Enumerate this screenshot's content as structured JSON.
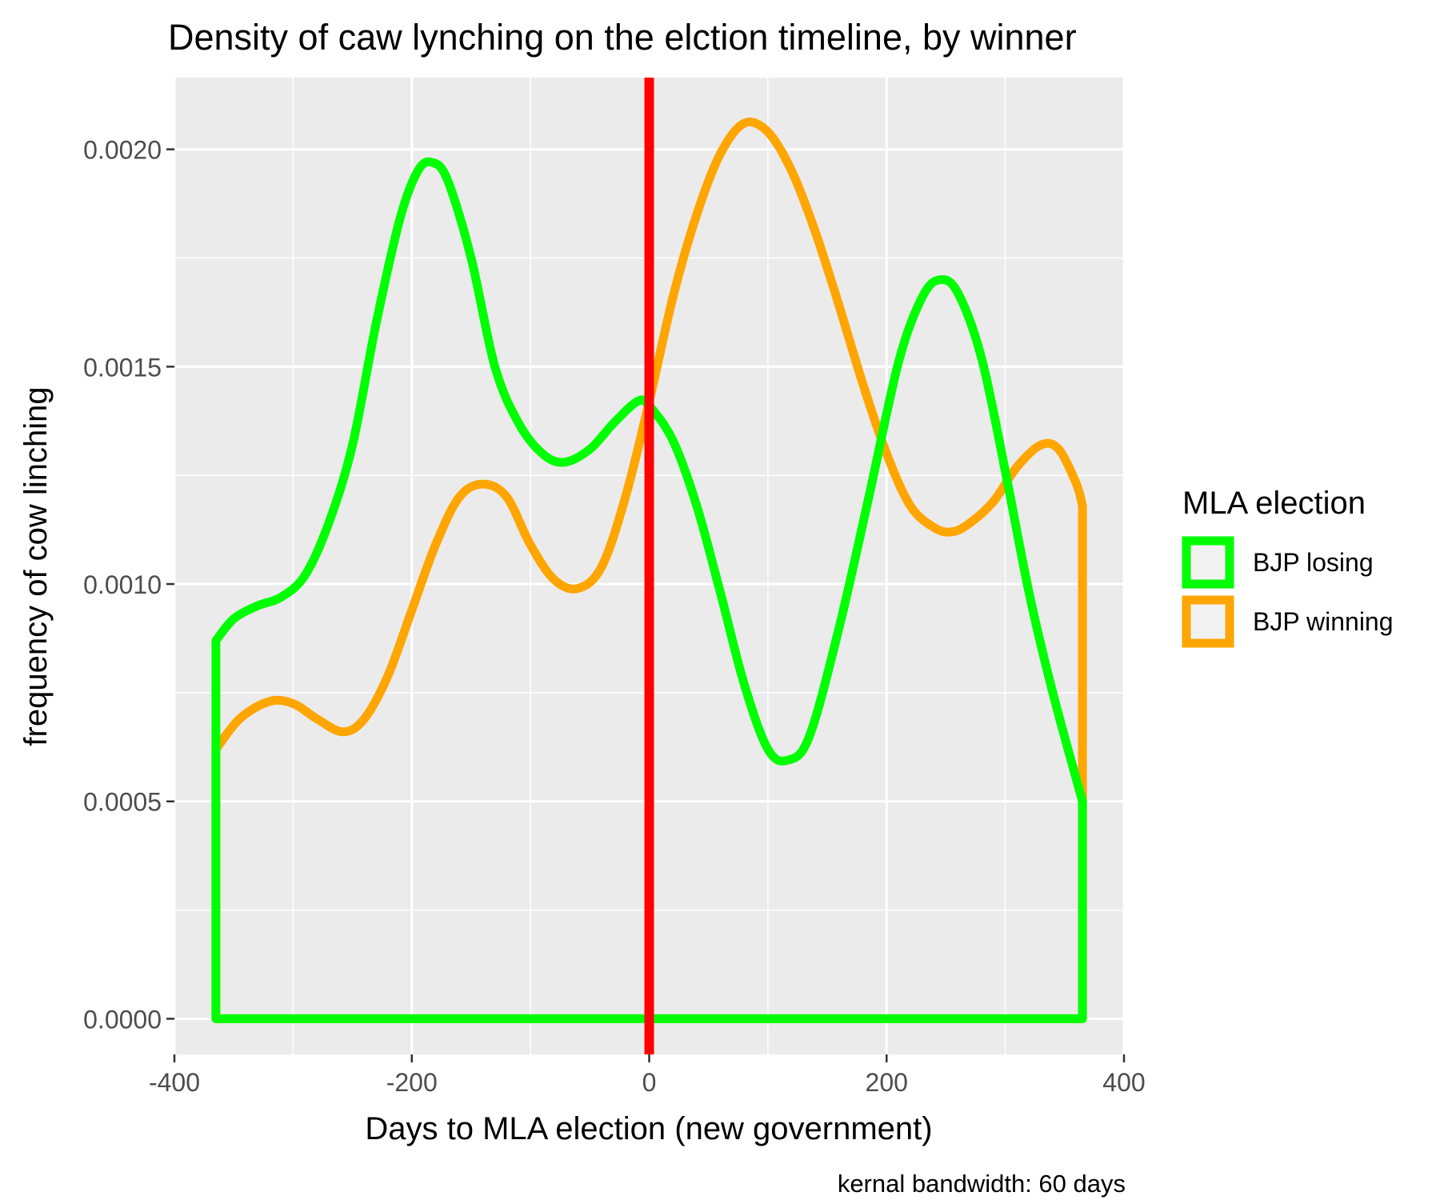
{
  "chart_data": {
    "type": "line",
    "title": "Density of caw lynching on the elction timeline, by winner",
    "xlabel": "Days to MLA election (new government)",
    "ylabel": "frequency of cow linching",
    "caption": "kernal bandwidth: 60 days",
    "xlim": [
      -400,
      400
    ],
    "ylim": [
      -8.2e-05,
      0.002165
    ],
    "x_ticks": [
      -400,
      -200,
      0,
      200,
      400
    ],
    "x_tick_labels": [
      "-400",
      "-200",
      "0",
      "200",
      "400"
    ],
    "y_ticks": [
      0.0,
      0.0005,
      0.001,
      0.0015,
      0.002
    ],
    "y_tick_labels": [
      "0.0000",
      "0.0005",
      "0.0010",
      "0.0015",
      "0.0020"
    ],
    "grid": true,
    "legend": {
      "title": "MLA election",
      "position": "right"
    },
    "reference_line": {
      "x": 0,
      "color": "#ff0000"
    },
    "series": [
      {
        "name": "BJP losing",
        "color": "#00ff00",
        "closed_to_zero": true,
        "points": [
          [
            -365,
            0.00087
          ],
          [
            -350,
            0.00092
          ],
          [
            -330,
            0.00095
          ],
          [
            -310,
            0.00097
          ],
          [
            -290,
            0.00102
          ],
          [
            -270,
            0.00114
          ],
          [
            -250,
            0.00132
          ],
          [
            -230,
            0.0016
          ],
          [
            -210,
            0.00184
          ],
          [
            -195,
            0.00195
          ],
          [
            -183,
            0.00197
          ],
          [
            -170,
            0.00193
          ],
          [
            -150,
            0.00175
          ],
          [
            -130,
            0.0015
          ],
          [
            -110,
            0.00137
          ],
          [
            -90,
            0.0013
          ],
          [
            -72,
            0.00128
          ],
          [
            -50,
            0.00131
          ],
          [
            -30,
            0.00137
          ],
          [
            -10,
            0.00142
          ],
          [
            0,
            0.00141
          ],
          [
            20,
            0.00133
          ],
          [
            40,
            0.00118
          ],
          [
            60,
            0.00098
          ],
          [
            80,
            0.00077
          ],
          [
            100,
            0.00062
          ],
          [
            117,
            0.000595
          ],
          [
            135,
            0.00065
          ],
          [
            160,
            0.0009
          ],
          [
            185,
            0.0012
          ],
          [
            210,
            0.00151
          ],
          [
            230,
            0.00166
          ],
          [
            245,
            0.0017
          ],
          [
            260,
            0.00167
          ],
          [
            280,
            0.00152
          ],
          [
            300,
            0.00126
          ],
          [
            320,
            0.00098
          ],
          [
            340,
            0.00075
          ],
          [
            365,
            0.0005
          ]
        ]
      },
      {
        "name": "BJP winning",
        "color": "#ffa500",
        "closed_to_zero": true,
        "points": [
          [
            -365,
            0.00062
          ],
          [
            -345,
            0.00069
          ],
          [
            -320,
            0.00073
          ],
          [
            -300,
            0.000725
          ],
          [
            -280,
            0.00069
          ],
          [
            -258,
            0.00066
          ],
          [
            -240,
            0.00069
          ],
          [
            -220,
            0.00079
          ],
          [
            -200,
            0.00094
          ],
          [
            -180,
            0.00109
          ],
          [
            -160,
            0.0012
          ],
          [
            -140,
            0.00123
          ],
          [
            -120,
            0.0012
          ],
          [
            -100,
            0.00109
          ],
          [
            -80,
            0.00101
          ],
          [
            -60,
            0.00099
          ],
          [
            -40,
            0.00104
          ],
          [
            -20,
            0.0012
          ],
          [
            0,
            0.00142
          ],
          [
            20,
            0.00166
          ],
          [
            40,
            0.00185
          ],
          [
            60,
            0.00199
          ],
          [
            80,
            0.00206
          ],
          [
            100,
            0.00204
          ],
          [
            120,
            0.00195
          ],
          [
            140,
            0.00181
          ],
          [
            160,
            0.00164
          ],
          [
            180,
            0.00146
          ],
          [
            200,
            0.0013
          ],
          [
            220,
            0.00118
          ],
          [
            240,
            0.00113
          ],
          [
            255,
            0.00112
          ],
          [
            270,
            0.00114
          ],
          [
            290,
            0.00119
          ],
          [
            310,
            0.00127
          ],
          [
            330,
            0.00132
          ],
          [
            345,
            0.00131
          ],
          [
            360,
            0.00123
          ],
          [
            365,
            0.00118
          ]
        ]
      }
    ]
  }
}
